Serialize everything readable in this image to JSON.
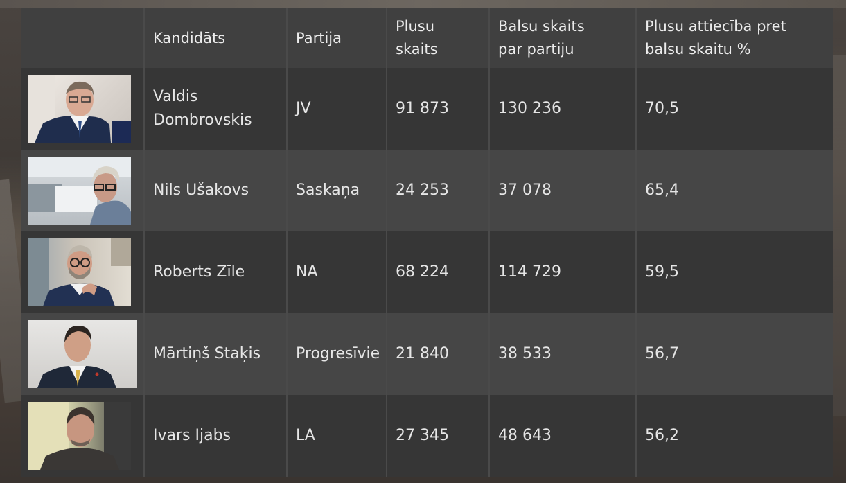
{
  "table": {
    "headers": {
      "photo": "",
      "candidate": "Kandidāts",
      "party": "Partija",
      "plus_line1": "Plusu",
      "plus_line2": "skaits",
      "votes_line1": "Balsu skaits",
      "votes_line2": "par partiju",
      "ratio_line1": "Plusu attiecība pret",
      "ratio_line2": "balsu skaitu %"
    },
    "rows": [
      {
        "name_line1": "Valdis",
        "name_line2": "Dombrovskis",
        "party": "JV",
        "plus": "91 873",
        "votes": "130 236",
        "ratio": "70,5",
        "photo_icon": "portrait-man-glasses-suit"
      },
      {
        "name_line1": "Nils Ušakovs",
        "name_line2": "",
        "party": "Saskaņa",
        "plus": "24 253",
        "votes": "37 078",
        "ratio": "65,4",
        "photo_icon": "portrait-man-grey-hair-glasses"
      },
      {
        "name_line1": "Roberts Zīle",
        "name_line2": "",
        "party": "NA",
        "plus": "68 224",
        "votes": "114 729",
        "ratio": "59,5",
        "photo_icon": "portrait-man-beard-glasses"
      },
      {
        "name_line1": "Mārtiņš Staķis",
        "name_line2": "",
        "party": "Progresīvie",
        "plus": "21 840",
        "votes": "38 533",
        "ratio": "56,7",
        "photo_icon": "portrait-man-yellow-tie"
      },
      {
        "name_line1": "Ivars Ijabs",
        "name_line2": "",
        "party": "LA",
        "plus": "27 345",
        "votes": "48 643",
        "ratio": "56,2",
        "photo_icon": "portrait-man-dark-hair"
      }
    ]
  },
  "colors": {
    "header_bg": "#404040",
    "row_dark": "#363636",
    "row_light": "#464646",
    "text": "#e6e6e6"
  }
}
